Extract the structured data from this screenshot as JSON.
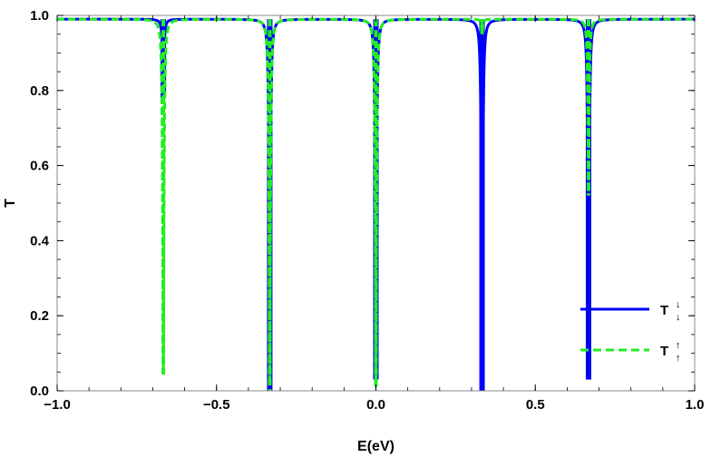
{
  "chart_data": {
    "type": "line",
    "xlabel": "E(eV)",
    "ylabel": "T",
    "xlim": [
      -1.0,
      1.0
    ],
    "ylim": [
      0.0,
      1.0
    ],
    "x_ticks": [
      -1.0,
      -0.5,
      0.0,
      0.5,
      1.0
    ],
    "x_tick_labels": [
      "-1.0",
      "-0.5",
      "0.0",
      "0.5",
      "1.0"
    ],
    "y_ticks": [
      0.0,
      0.2,
      0.4,
      0.6,
      0.8,
      1.0
    ],
    "y_tick_labels": [
      "0.0",
      "0.2",
      "0.4",
      "0.6",
      "0.8",
      "1.0"
    ],
    "grid": false,
    "legend_placement": "bottom-right",
    "series": [
      {
        "name": "T↓↓",
        "color": "#0000ff",
        "style": "solid",
        "baseline": 0.99,
        "dips": [
          {
            "x": -0.667,
            "min": 0.78
          },
          {
            "x": -0.333,
            "min": 0.0
          },
          {
            "x": 0.0,
            "min": 0.03
          },
          {
            "x": 0.333,
            "min": 0.0
          },
          {
            "x": 0.667,
            "min": 0.03
          }
        ]
      },
      {
        "name": "T↑↑",
        "color": "#22ee22",
        "style": "dashed",
        "baseline": 0.99,
        "dips": [
          {
            "x": -0.667,
            "min": 0.04
          },
          {
            "x": -0.333,
            "min": 0.0
          },
          {
            "x": 0.0,
            "min": 0.01
          },
          {
            "x": 0.333,
            "min": 0.95
          },
          {
            "x": 0.667,
            "min": 0.52
          }
        ]
      }
    ],
    "legend": {
      "entries": [
        {
          "main": "T",
          "sup": "↓",
          "sub": "↓"
        },
        {
          "main": "T",
          "sup": "↑",
          "sub": "↑"
        }
      ]
    }
  }
}
